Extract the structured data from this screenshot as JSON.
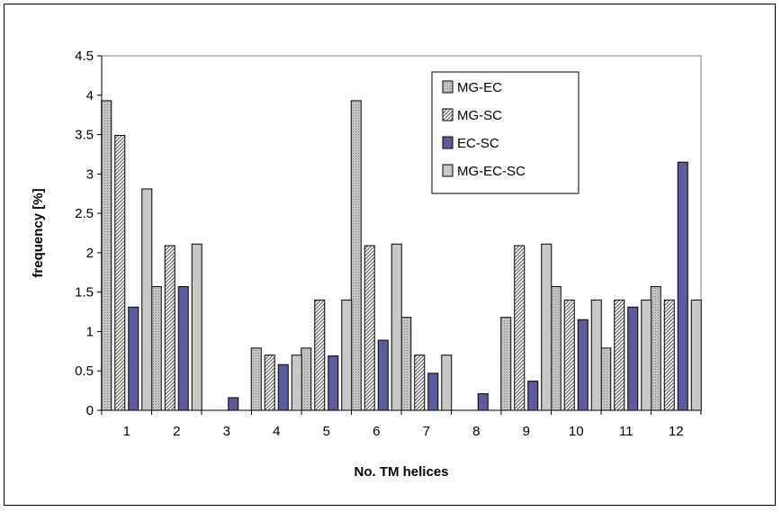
{
  "chart_data": {
    "type": "bar",
    "title": "",
    "xlabel": "No. TM helices",
    "ylabel": "frequency [%]",
    "ylim": [
      0,
      4.5
    ],
    "yticks": [
      "0",
      "0.5",
      "1",
      "1.5",
      "2",
      "2.5",
      "3",
      "3.5",
      "4",
      "4.5"
    ],
    "categories": [
      "1",
      "2",
      "3",
      "4",
      "5",
      "6",
      "7",
      "8",
      "9",
      "10",
      "11",
      "12"
    ],
    "grid": false,
    "legend_position": "top-right",
    "series": [
      {
        "name": "MG-EC",
        "values": [
          3.93,
          1.57,
          0,
          0.79,
          0.79,
          3.93,
          1.18,
          0,
          1.18,
          1.57,
          0.79,
          1.57
        ],
        "color": "#c0c0c0",
        "pattern": "dots"
      },
      {
        "name": "MG-SC",
        "values": [
          3.49,
          2.09,
          0,
          0.7,
          1.4,
          2.09,
          0.7,
          0,
          2.09,
          1.4,
          1.4,
          1.4
        ],
        "color": "#ffffff",
        "pattern": "diagonal"
      },
      {
        "name": "EC-SC",
        "values": [
          1.31,
          1.57,
          0.16,
          0.58,
          0.69,
          0.89,
          0.47,
          0.21,
          0.37,
          1.15,
          1.31,
          3.15
        ],
        "color": "#5c5c9c",
        "pattern": "solid"
      },
      {
        "name": "MG-EC-SC",
        "values": [
          2.81,
          2.11,
          0,
          0.7,
          1.4,
          2.11,
          0.7,
          0,
          2.11,
          1.4,
          1.4,
          1.4
        ],
        "color": "#c8c8c8",
        "pattern": "solid"
      }
    ]
  }
}
